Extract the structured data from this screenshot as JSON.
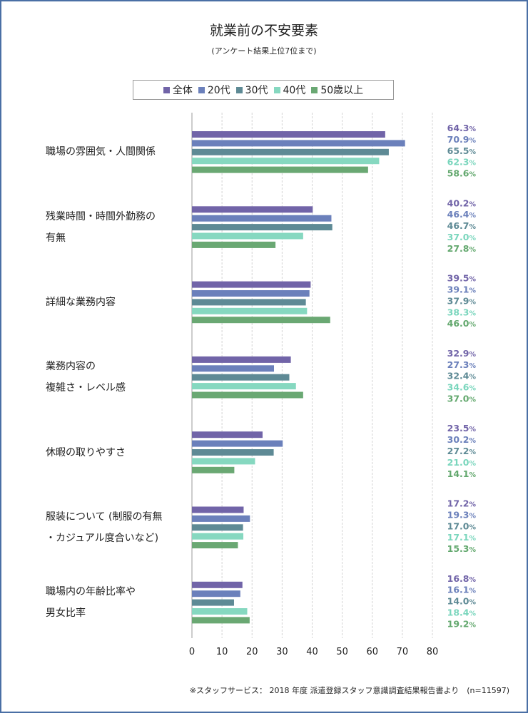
{
  "title": "就業前の不安要素",
  "subtitle": "(アンケート結果上位7位まで)",
  "footer": "※スタッフサービス： 2018 年度 派遣登録スタッフ意識調査結果報告書より　(n=11597)",
  "chart_data": {
    "type": "bar",
    "orientation": "horizontal",
    "title": "就業前の不安要素",
    "subtitle": "(アンケート結果上位7位まで)",
    "xlim": [
      0,
      80
    ],
    "xticks": [
      "0",
      "10",
      "20",
      "30",
      "40",
      "50",
      "60",
      "70",
      "80"
    ],
    "unit": "%",
    "categories": [
      [
        "職場の雰囲気・人間関係"
      ],
      [
        "残業時間・時間外勤務の",
        "有無"
      ],
      [
        "詳細な業務内容"
      ],
      [
        "業務内容の",
        "複雑さ・レベル感"
      ],
      [
        "休暇の取りやすさ"
      ],
      [
        "服装について (制服の有無",
        "・カジュアル度合いなど)"
      ],
      [
        "職場内の年齢比率や",
        "男女比率"
      ]
    ],
    "series": [
      {
        "name": "全体",
        "color": "#7164a8",
        "label_color": "#7164a8",
        "values": [
          64.3,
          40.2,
          39.5,
          32.9,
          23.5,
          17.2,
          16.8
        ]
      },
      {
        "name": "20代",
        "color": "#6b80bb",
        "label_color": "#6b80bb",
        "values": [
          70.9,
          46.4,
          39.1,
          27.3,
          30.2,
          19.3,
          16.1
        ]
      },
      {
        "name": "30代",
        "color": "#5e8a95",
        "label_color": "#5e8a95",
        "values": [
          65.5,
          46.7,
          37.9,
          32.4,
          27.2,
          17.0,
          14.0
        ]
      },
      {
        "name": "40代",
        "color": "#86d8c0",
        "label_color": "#7ad6bd",
        "values": [
          62.3,
          37.0,
          38.3,
          34.6,
          21.0,
          17.1,
          18.4
        ]
      },
      {
        "name": "50歳以上",
        "color": "#6aa873",
        "label_color": "#63a86e",
        "values": [
          58.6,
          27.8,
          46.0,
          37.0,
          14.1,
          15.3,
          19.2
        ]
      }
    ]
  }
}
